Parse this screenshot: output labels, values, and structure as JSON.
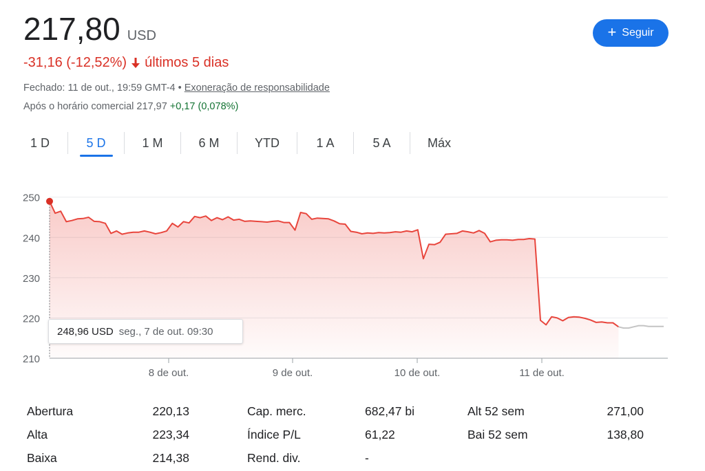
{
  "quote": {
    "price": "217,80",
    "currency": "USD",
    "change": "-31,16 (-12,52%)",
    "period": "últimos 5 dias",
    "closed_prefix": "Fechado: 11 de out., 19:59 GMT-4 •",
    "disclaimer_link": "Exoneração de responsabilidade",
    "after_hours_label": "Após o horário comercial 217,97",
    "after_hours_change": "+0,17 (0,078%)"
  },
  "follow_button": {
    "plus": "+",
    "label": "Seguir"
  },
  "tabs": [
    {
      "label": "1 D",
      "active": false
    },
    {
      "label": "5 D",
      "active": true
    },
    {
      "label": "1 M",
      "active": false
    },
    {
      "label": "6 M",
      "active": false
    },
    {
      "label": "YTD",
      "active": false
    },
    {
      "label": "1 A",
      "active": false
    },
    {
      "label": "5 A",
      "active": false
    },
    {
      "label": "Máx",
      "active": false
    }
  ],
  "tooltip": {
    "price": "248,96 USD",
    "date": "seg., 7 de out. 09:30"
  },
  "colors": {
    "line": "#e8453c",
    "after_hours_line": "#c4c4c4",
    "negative": "#d93025",
    "positive": "#137333",
    "accent": "#1a73e8"
  },
  "chart_data": {
    "type": "area",
    "x_tick_labels": [
      "8 de out.",
      "9 de out.",
      "10 de out.",
      "11 de out."
    ],
    "y_ticks": [
      250,
      240,
      230,
      220,
      210
    ],
    "ylim": [
      210,
      252
    ],
    "grid": true,
    "series": [
      {
        "values": [
          248.96,
          246.0,
          246.5,
          243.9,
          244.2,
          244.6,
          244.7,
          245.0,
          244.0,
          243.9,
          243.5,
          241.0,
          241.6,
          240.8,
          241.1,
          241.3,
          241.3,
          241.6,
          241.3,
          240.9,
          241.2,
          241.6,
          243.5,
          242.6,
          243.9,
          243.6,
          245.2,
          244.9,
          245.3,
          244.2,
          244.9,
          244.4,
          245.1,
          244.3,
          244.5,
          244.0,
          244.1,
          244.0,
          243.9,
          243.8,
          244.0,
          244.1,
          243.7,
          243.7,
          241.8,
          246.2,
          245.9,
          244.5,
          244.8,
          244.7,
          244.6,
          244.1,
          243.4,
          243.3,
          241.5,
          241.3,
          240.9,
          241.1,
          241.0,
          241.2,
          241.1,
          241.2,
          241.4,
          241.3,
          241.6,
          241.4,
          241.9,
          234.7,
          238.3,
          238.2,
          238.8,
          240.8,
          240.9,
          241.0,
          241.6,
          241.4,
          241.1,
          241.7,
          241.0,
          238.9,
          239.3,
          239.4,
          239.4,
          239.3,
          239.5,
          239.5,
          239.7,
          239.6,
          219.4,
          218.3,
          220.3,
          220.0,
          219.3,
          220.1,
          220.3,
          220.2,
          219.9,
          219.5,
          218.9,
          219.0,
          218.8,
          218.8,
          217.8
        ],
        "type": "area"
      },
      {
        "name": "Após o horário comercial",
        "values": [
          217.8,
          217.5,
          217.5,
          217.8,
          218.1,
          218.1,
          217.9,
          217.9,
          217.9,
          217.9
        ],
        "type": "line"
      }
    ],
    "tooltip": {
      "value": 248.96,
      "label": "seg., 7 de out. 09:30"
    }
  },
  "stats": [
    [
      {
        "label": "Abertura",
        "value": "220,13"
      },
      {
        "label": "Cap. merc.",
        "value": "682,47 bi"
      },
      {
        "label": "Alt 52 sem",
        "value": "271,00"
      }
    ],
    [
      {
        "label": "Alta",
        "value": "223,34"
      },
      {
        "label": "Índice P/L",
        "value": "61,22"
      },
      {
        "label": "Bai 52 sem",
        "value": "138,80"
      }
    ],
    [
      {
        "label": "Baixa",
        "value": "214,38"
      },
      {
        "label": "Rend. div.",
        "value": "-"
      },
      {
        "label": "",
        "value": ""
      }
    ]
  ]
}
